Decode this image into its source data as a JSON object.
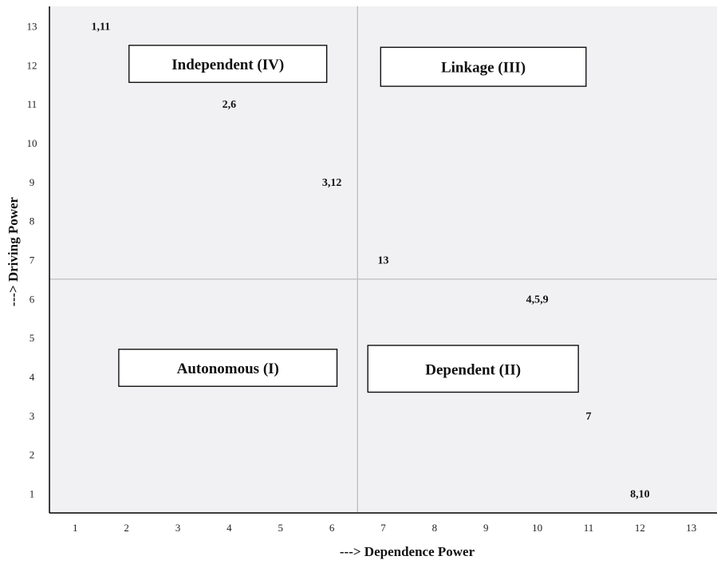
{
  "chart_data": {
    "type": "scatter",
    "title": "",
    "xlabel": "---> Dependence Power",
    "ylabel": "---> Driving Power",
    "xlim": [
      0.5,
      13.5
    ],
    "ylim": [
      0.5,
      13.5
    ],
    "x_ticks": [
      "1",
      "2",
      "3",
      "4",
      "5",
      "6",
      "7",
      "8",
      "9",
      "10",
      "11",
      "12",
      "13"
    ],
    "y_ticks": [
      "1",
      "2",
      "3",
      "4",
      "5",
      "6",
      "7",
      "8",
      "9",
      "10",
      "11",
      "12",
      "13"
    ],
    "divider": {
      "x": 6.5,
      "y": 6.5
    },
    "grid": false,
    "background": "#f1f1f3",
    "points": [
      {
        "label": "1,11",
        "x": 1.5,
        "y": 13
      },
      {
        "label": "2,6",
        "x": 4,
        "y": 11
      },
      {
        "label": "3,12",
        "x": 6,
        "y": 9
      },
      {
        "label": "13",
        "x": 7,
        "y": 7
      },
      {
        "label": "4,5,9",
        "x": 10,
        "y": 6
      },
      {
        "label": "7",
        "x": 11,
        "y": 3
      },
      {
        "label": "8,10",
        "x": 12,
        "y": 1
      }
    ],
    "quadrants": [
      {
        "label": "Independent (IV)",
        "x0": 2.05,
        "x1": 5.9,
        "y0": 11.55,
        "y1": 12.5
      },
      {
        "label": "Linkage (III)",
        "x0": 6.95,
        "x1": 10.95,
        "y0": 11.45,
        "y1": 12.45
      },
      {
        "label": "Autonomous (I)",
        "x0": 1.85,
        "x1": 6.1,
        "y0": 3.75,
        "y1": 4.7
      },
      {
        "label": "Dependent (II)",
        "x0": 6.7,
        "x1": 10.8,
        "y0": 3.6,
        "y1": 4.8
      }
    ]
  }
}
